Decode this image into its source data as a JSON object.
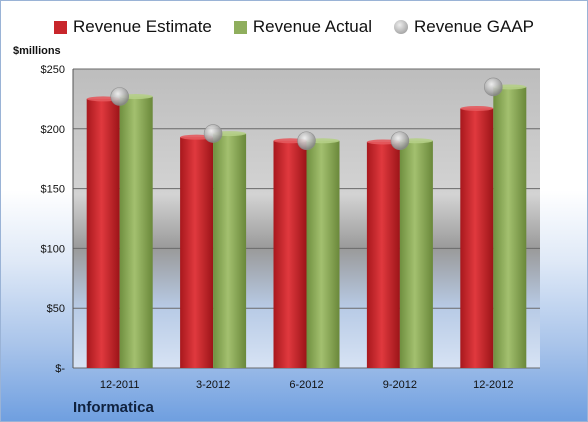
{
  "chart_data": {
    "type": "bar",
    "categories": [
      "12-2011",
      "3-2012",
      "6-2012",
      "9-2012",
      "12-2012"
    ],
    "series": [
      {
        "name": "Revenue Estimate",
        "values": [
          225,
          193,
          190,
          189,
          217
        ],
        "color": "#c8262b"
      },
      {
        "name": "Revenue Actual",
        "values": [
          227,
          196,
          190,
          190,
          235
        ],
        "color": "#8fae5d"
      },
      {
        "name": "Revenue GAAP",
        "values": [
          227,
          196,
          190,
          190,
          235
        ],
        "color": "#b9b9b9",
        "marker": "circle"
      }
    ],
    "ylabel": "$millions",
    "ylim": [
      0,
      250
    ],
    "yticks": [
      0,
      50,
      100,
      150,
      200,
      250
    ],
    "ytick_labels": [
      "$-",
      "$50",
      "$100",
      "$150",
      "$200",
      "$250"
    ],
    "grid": true,
    "legend": "top",
    "footer": "Informatica"
  }
}
